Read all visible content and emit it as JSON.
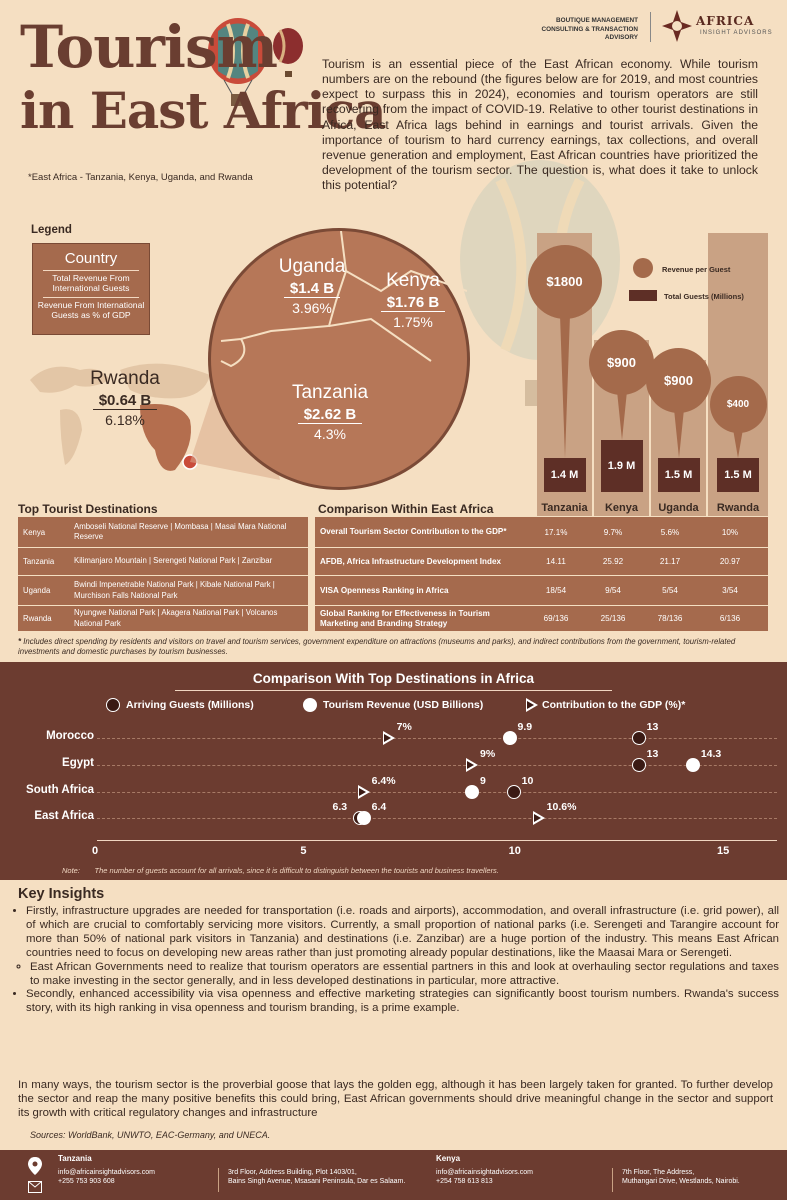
{
  "header": {
    "title_line1": "Tourism",
    "title_line2": "in East Africa",
    "subnote": "*East Africa - Tanzania, Kenya, Uganda, and Rwanda",
    "brand_tagline": "BOUTIQUE MANAGEMENT CONSULTING & TRANSACTION ADVISORY",
    "brand_name": "AFRICA",
    "brand_sub": "INSIGHT ADVISORS",
    "intro": "Tourism is an essential piece of the East African economy. While tourism numbers are on the rebound (the figures below are for 2019, and most countries expect to surpass this in 2024), economies and tourism operators are still recovering from the impact of COVID-19. Relative to other tourist destinations in Africa, East Africa lags behind in earnings and tourist arrivals. Given the importance of tourism to hard currency earnings, tax collections, and overall revenue generation and employment, East African countries have prioritized the development of the tourism sector. The question is, what does it take to unlock this potential?"
  },
  "legend": {
    "title": "Legend",
    "country": "Country",
    "line1": "Total Revenue From International Guests",
    "line2": "Revenue From International Guests as % of GDP"
  },
  "map": {
    "uganda": {
      "name": "Uganda",
      "revenue": "$1.4 B",
      "gdp": "3.96%"
    },
    "kenya": {
      "name": "Kenya",
      "revenue": "$1.76 B",
      "gdp": "1.75%"
    },
    "tanzania": {
      "name": "Tanzania",
      "revenue": "$2.62 B",
      "gdp": "4.3%"
    },
    "rwanda": {
      "name": "Rwanda",
      "revenue": "$0.64 B",
      "gdp": "6.18%"
    }
  },
  "bars": {
    "legend_pin": "Revenue per Guest",
    "legend_box": "Total Guests (Millions)",
    "items": [
      {
        "country": "Tanzania",
        "rev": "$1800",
        "rev_value": 1800,
        "guests": "1.4 M"
      },
      {
        "country": "Kenya",
        "rev": "$900",
        "rev_value": 900,
        "guests": "1.9 M"
      },
      {
        "country": "Uganda",
        "rev": "$900",
        "rev_value": 900,
        "guests": "1.5 M"
      },
      {
        "country": "Rwanda",
        "rev": "$400",
        "rev_value": 400,
        "guests": "1.5 M"
      }
    ]
  },
  "destinations": {
    "title": "Top Tourist Destinations",
    "rows": [
      {
        "country": "Kenya",
        "text": "Amboseli National Reserve   |   Mombasa   |   Masai Mara National Reserve"
      },
      {
        "country": "Tanzania",
        "text": "Kilimanjaro Mountain   |   Serengeti National Park   |   Zanzibar"
      },
      {
        "country": "Uganda",
        "text": "Bwindi Impenetrable National Park   |   Kibale National Park   |   Murchison Falls National Park"
      },
      {
        "country": "Rwanda",
        "text": "Nyungwe National Park   |   Akagera National Park   |   Volcanos National Park"
      }
    ]
  },
  "within": {
    "title": "Comparison Within East Africa",
    "headers": [
      "Tanzania",
      "Kenya",
      "Uganda",
      "Rwanda"
    ],
    "rows": [
      {
        "metric": "Overall Tourism Sector Contribution to the GDP*",
        "values": [
          "17.1%",
          "9.7%",
          "5.6%",
          "10%"
        ]
      },
      {
        "metric": "AFDB, Africa Infrastructure Development Index",
        "values": [
          "14.11",
          "25.92",
          "21.17",
          "20.97"
        ]
      },
      {
        "metric": "VISA Openness Ranking in Africa",
        "values": [
          "18/54",
          "9/54",
          "5/54",
          "3/54"
        ]
      },
      {
        "metric": "Global Ranking for Effectiveness in Tourism Marketing and Branding Strategy",
        "values": [
          "69/136",
          "25/136",
          "78/136",
          "6/136"
        ]
      }
    ]
  },
  "footnote": "Includes direct spending by residents and visitors on travel and tourism services, government expenditure on attractions (museums and parks), and indirect contributions from the government, tourism-related investments and domestic purchases by tourism businesses.",
  "chart_data": {
    "type": "scatter",
    "title": "Comparison With Top Destinations in Africa",
    "categories": [
      "Morocco",
      "Egypt",
      "South Africa",
      "East Africa"
    ],
    "series": [
      {
        "name": "Arriving Guests (Millions)",
        "values": [
          13,
          13,
          10,
          6.3
        ]
      },
      {
        "name": "Tourism Revenue (USD Billions)",
        "values": [
          9.9,
          14.3,
          9,
          6.4
        ]
      },
      {
        "name": "Contribution to the GDP (%)*",
        "values": [
          7,
          9,
          6.4,
          10.6
        ],
        "labels": [
          "7%",
          "9%",
          "6.4%",
          "10.6%"
        ]
      }
    ],
    "value_labels": {
      "arrivals": [
        "13",
        "13",
        "10",
        "6.3"
      ],
      "revenue": [
        "9.9",
        "14.3",
        "9",
        "6.4"
      ]
    },
    "xticks": [
      "0",
      "5",
      "10",
      "15"
    ],
    "xlim": [
      0,
      16.5
    ],
    "note_label": "Note:",
    "note": "The number of guests account for all arrivals, since it is difficult to distinguish between the tourists and business travellers."
  },
  "insights": {
    "title": "Key Insights",
    "b1": "Firstly, infrastructure upgrades are needed for transportation (i.e. roads and airports), accommodation, and overall infrastructure (i.e. grid power), all of which are crucial to comfortably servicing more visitors. Currently, a small proportion of national parks (i.e. Serengeti and Tarangire account for more than 50% of national park visitors in Tanzania) and destinations (i.e. Zanzibar) are a huge portion of the industry. This means East African countries need to focus on developing new areas rather than just promoting already popular destinations, like the Maasai Mara or Serengeti.",
    "b1_sub": "East African Governments need to realize that tourism operators are essential partners in this and look at overhauling sector regulations and taxes to make investing in the sector generally, and in less developed destinations in particular, more attractive.",
    "b2": "Secondly, enhanced accessibility via visa openness and effective marketing strategies can significantly boost tourism numbers. Rwanda's success story, with its high ranking in visa openness and tourism branding, is a prime example.",
    "closing": "In many ways, the tourism sector is the proverbial goose that lays the golden egg, although it has been largely taken for granted. To further develop the sector and reap the many positive benefits this could bring, East African governments should drive meaningful change in the sector and support its growth with critical regulatory changes and infrastructure",
    "sources": "Sources:  WorldBank,  UNWTO,  EAC-Germany,  and  UNECA."
  },
  "footer": {
    "tz_title": "Tanzania",
    "tz_email": "info@africainsightadvisors.com",
    "tz_phone": "+255 753 903 608",
    "tz_addr1": "3rd Floor, Address Building, Plot 1403/01,",
    "tz_addr2": "Bains Singh Avenue, Msasani Peninsula, Dar es Salaam.",
    "ke_title": "Kenya",
    "ke_email": "info@africainsightadvisors.com",
    "ke_phone": "+254 758 613 813",
    "ke_addr1": "7th Floor, The Address,",
    "ke_addr2": "Muthangari Drive, Westlands, Nairobi."
  }
}
